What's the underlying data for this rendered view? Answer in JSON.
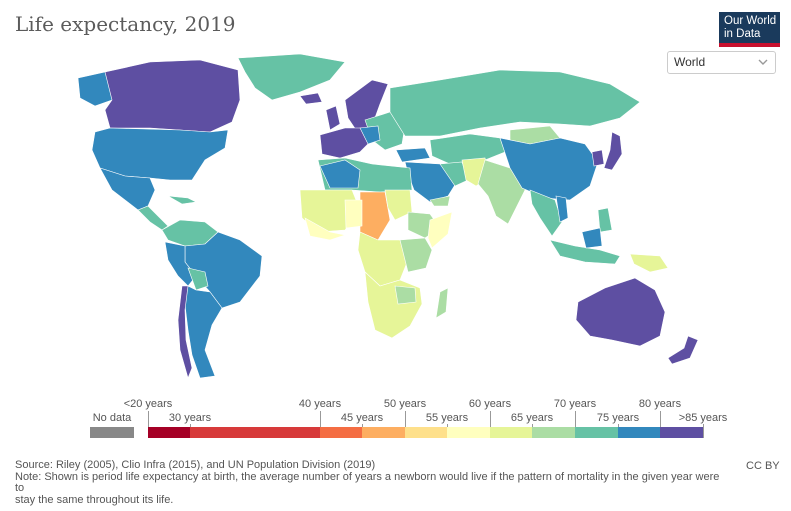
{
  "header": {
    "title": "Life expectancy, 2019",
    "logo_line1": "Our World",
    "logo_line2": "in Data",
    "entity_selector": "World"
  },
  "legend": {
    "no_data_label": "No data",
    "no_data_color": "#888888",
    "bins": [
      {
        "label": "<20 years",
        "color": "#ffffff"
      },
      {
        "label": "30 years",
        "color": "#a50026"
      },
      {
        "label": "40 years",
        "color": "#d73a3a"
      },
      {
        "label": "45 years",
        "color": "#f46d43"
      },
      {
        "label": "50 years",
        "color": "#fdae61"
      },
      {
        "label": "55 years",
        "color": "#fee08b"
      },
      {
        "label": "60 years",
        "color": "#ffffbf"
      },
      {
        "label": "65 years",
        "color": "#e6f598"
      },
      {
        "label": "70 years",
        "color": "#abdda4"
      },
      {
        "label": "75 years",
        "color": "#66c2a5"
      },
      {
        "label": "80 years",
        "color": "#3288bd"
      },
      {
        "label": ">85 years",
        "color": "#5e4fa2"
      }
    ]
  },
  "footer": {
    "source": "Source: Riley (2005), Clio Infra (2015), and UN Population Division (2019)",
    "note_line1": "Note: Shown is period life expectancy at birth, the average number of years a newborn would live if the pattern of mortality in the given year were",
    "note_line2": "to",
    "note_line3": "stay the same throughout its life.",
    "license": "CC BY"
  },
  "map_colors": {
    "purple": "#5e4fa2",
    "blue": "#3288bd",
    "teal": "#66c2a5",
    "lightgreen": "#abdda4",
    "yellowgreen": "#e6f598",
    "paleyellow": "#ffffbf",
    "yellow": "#fee08b",
    "orange": "#fdae61"
  }
}
